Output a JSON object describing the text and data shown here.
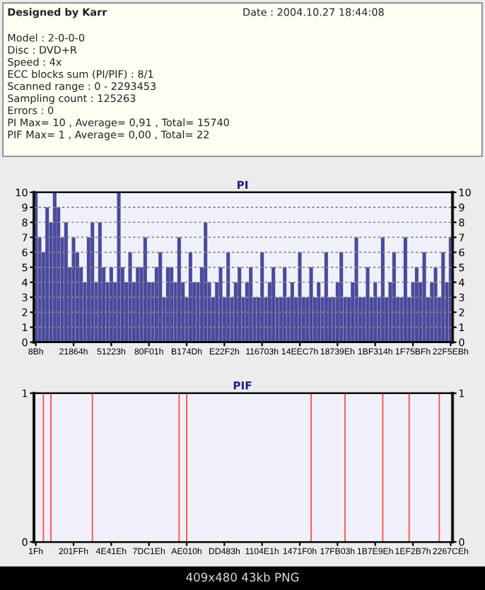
{
  "chart_data": [
    {
      "type": "bar",
      "title": "PI",
      "annotations": [
        "Designed by Karr",
        "Date : 2004.10.27 18:44:08",
        "Model : 2-0-0-0",
        "Disc : DVD+R",
        "Speed : 4x",
        "ECC blocks sum (PI/PIF) : 8/1",
        "Scanned range : 0 - 2293453",
        "Sampling count : 125263",
        "Errors : 0",
        "PI Max= 10 , Average= 0,91 , Total= 15740",
        "PIF Max= 1 , Average= 0,00 , Total= 22"
      ],
      "categories": [
        "8Bh",
        null,
        null,
        null,
        null,
        null,
        null,
        null,
        null,
        null,
        "21864h",
        null,
        null,
        null,
        null,
        null,
        null,
        null,
        null,
        null,
        "51223h",
        null,
        null,
        null,
        null,
        null,
        null,
        null,
        null,
        null,
        "80F01h",
        null,
        null,
        null,
        null,
        null,
        null,
        null,
        null,
        null,
        "B174Dh",
        null,
        null,
        null,
        null,
        null,
        null,
        null,
        null,
        null,
        "E22F2h",
        null,
        null,
        null,
        null,
        null,
        null,
        null,
        null,
        null,
        "116703h",
        null,
        null,
        null,
        null,
        null,
        null,
        null,
        null,
        null,
        "14EEC7h",
        null,
        null,
        null,
        null,
        null,
        null,
        null,
        null,
        null,
        "18739Eh",
        null,
        null,
        null,
        null,
        null,
        null,
        null,
        null,
        null,
        "1BF314h",
        null,
        null,
        null,
        null,
        null,
        null,
        null,
        null,
        null,
        "1F75BFh",
        null,
        null,
        null,
        null,
        null,
        null,
        null,
        null,
        null,
        "22F5EBh"
      ],
      "values": [
        10,
        7,
        6,
        9,
        8,
        10,
        9,
        7,
        8,
        5,
        7,
        6,
        5,
        4,
        7,
        8,
        4,
        8,
        5,
        4,
        5,
        4,
        10,
        5,
        4,
        6,
        4,
        5,
        5,
        7,
        4,
        4,
        5,
        6,
        3,
        5,
        5,
        4,
        7,
        4,
        3,
        6,
        4,
        4,
        5,
        8,
        4,
        3,
        4,
        5,
        3,
        6,
        3,
        4,
        5,
        3,
        4,
        5,
        3,
        3,
        6,
        3,
        4,
        5,
        3,
        3,
        5,
        3,
        4,
        3,
        6,
        3,
        3,
        5,
        3,
        4,
        3,
        6,
        3,
        3,
        4,
        6,
        3,
        3,
        4,
        7,
        3,
        3,
        5,
        3,
        4,
        3,
        7,
        3,
        4,
        6,
        3,
        3,
        7,
        3,
        4,
        5,
        4,
        6,
        3,
        4,
        5,
        3,
        6,
        4,
        7
      ],
      "color": "#4a4a9c",
      "ylim": [
        0,
        10
      ],
      "yticks": [
        0,
        1,
        2,
        3,
        4,
        5,
        6,
        7,
        8,
        9,
        10
      ],
      "y2lim": [
        0,
        10
      ],
      "y2ticks": [
        0,
        1,
        2,
        3,
        4,
        5,
        6,
        7,
        8,
        9,
        10
      ],
      "grid": "y"
    },
    {
      "type": "bar",
      "title": "PIF",
      "annotations": [
        "409x480 43kb PNG"
      ],
      "categories": [
        "1Fh",
        null,
        null,
        null,
        null,
        null,
        null,
        null,
        null,
        null,
        "201FFh",
        null,
        null,
        null,
        null,
        null,
        null,
        null,
        null,
        null,
        "4E41Eh",
        null,
        null,
        null,
        null,
        null,
        null,
        null,
        null,
        null,
        "7DC1Eh",
        null,
        null,
        null,
        null,
        null,
        null,
        null,
        null,
        null,
        "AE010h",
        null,
        null,
        null,
        null,
        null,
        null,
        null,
        null,
        null,
        "DD483h",
        null,
        null,
        null,
        null,
        null,
        null,
        null,
        null,
        null,
        "1104E1h",
        null,
        null,
        null,
        null,
        null,
        null,
        null,
        null,
        null,
        "1471F0h",
        null,
        null,
        null,
        null,
        null,
        null,
        null,
        null,
        null,
        "17FB03h",
        null,
        null,
        null,
        null,
        null,
        null,
        null,
        null,
        null,
        "1B7E9Eh",
        null,
        null,
        null,
        null,
        null,
        null,
        null,
        null,
        null,
        "1EF2B7h",
        null,
        null,
        null,
        null,
        null,
        null,
        null,
        null,
        null,
        "2267CEh"
      ],
      "values": [
        0,
        0,
        1,
        0,
        1,
        0,
        0,
        0,
        0,
        0,
        0,
        0,
        0,
        0,
        0,
        1,
        0,
        0,
        0,
        0,
        0,
        0,
        0,
        0,
        0,
        0,
        0,
        0,
        0,
        0,
        0,
        0,
        0,
        0,
        0,
        0,
        0,
        0,
        1,
        0,
        1,
        0,
        0,
        0,
        0,
        0,
        0,
        0,
        0,
        0,
        0,
        0,
        0,
        0,
        0,
        0,
        0,
        0,
        0,
        0,
        0,
        0,
        0,
        0,
        0,
        0,
        0,
        0,
        0,
        0,
        0,
        0,
        0,
        1,
        0,
        0,
        0,
        0,
        0,
        0,
        0,
        0,
        1,
        0,
        0,
        0,
        0,
        0,
        0,
        0,
        0,
        0,
        1,
        0,
        0,
        0,
        0,
        0,
        0,
        1,
        0,
        0,
        0,
        0,
        0,
        0,
        0,
        1,
        0,
        0,
        0
      ],
      "color": "#ff5050",
      "ylim": [
        0,
        1
      ],
      "yticks": [
        0,
        1
      ],
      "y2lim": [
        0,
        1
      ],
      "y2ticks": [
        0,
        1
      ],
      "grid": "y"
    }
  ]
}
